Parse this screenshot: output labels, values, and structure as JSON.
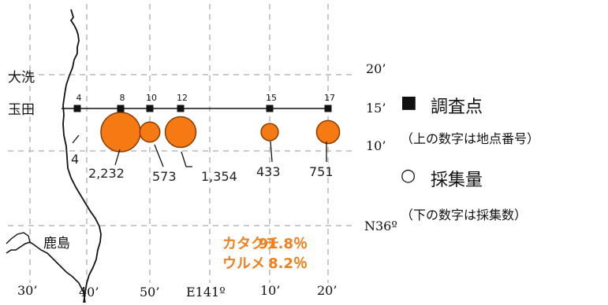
{
  "places": {
    "oarai": "大洗",
    "tamada": "玉田",
    "kashima": "鹿島"
  },
  "latitude_labels": [
    "20’",
    "15’",
    "10’",
    "N36º"
  ],
  "longitude_labels": [
    "30’",
    "40’",
    "50’",
    "E141º",
    "10’",
    "20’"
  ],
  "stations": [
    {
      "number": "4",
      "catch": "4",
      "catch_rel": 0.0
    },
    {
      "number": "8",
      "catch": "2,232",
      "catch_rel": 1.0
    },
    {
      "number": "10",
      "catch": "573",
      "catch_rel": 0.26
    },
    {
      "number": "12",
      "catch": "1,354",
      "catch_rel": 0.61
    },
    {
      "number": "15",
      "catch": "433",
      "catch_rel": 0.19
    },
    {
      "number": "17",
      "catch": "751",
      "catch_rel": 0.34
    }
  ],
  "legend": {
    "station_marker": "■",
    "station_label": "調査点",
    "station_note": "（上の数字は地点番号）",
    "catch_marker": "○",
    "catch_label": "採集量",
    "catch_note": "（下の数字は採集数）"
  },
  "species": [
    {
      "name": "カタクチ",
      "percent": "91.8％"
    },
    {
      "name": "ウルメ",
      "percent": "8.2％"
    }
  ],
  "colors": {
    "bubble_fill": "#f57a14",
    "bubble_stroke": "#8a3c00",
    "species_text": "#f07f1e",
    "grid": "#b8b8b8"
  }
}
